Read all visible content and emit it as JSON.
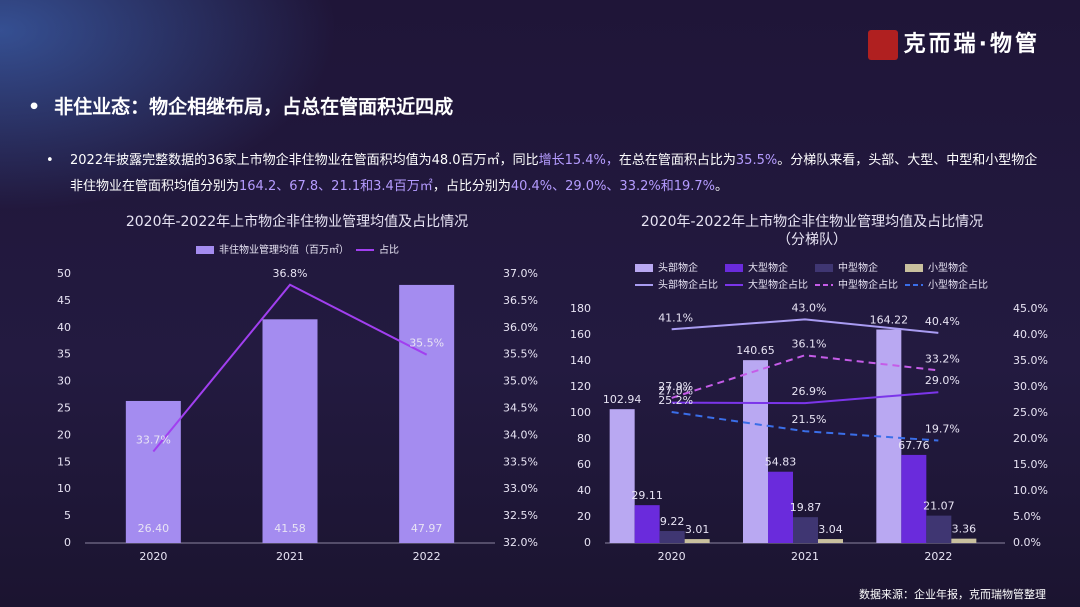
{
  "logo": "克而瑞·物管",
  "header": {
    "title": "非住业态：物企相继布局，占总在管面积近四成"
  },
  "paragraph": {
    "segments": [
      {
        "text": "2022年披露完整数据的36家上市物企非住物业在管面积均值为48.0百万㎡，同比",
        "highlight": false
      },
      {
        "text": "增长15.4%，",
        "highlight": true
      },
      {
        "text": "在总在管面积占比为",
        "highlight": false
      },
      {
        "text": "35.5%",
        "highlight": true
      },
      {
        "text": "。分梯队来看，头部、大型、中型和小型物企非住物业在管面积均值分别为",
        "highlight": false
      },
      {
        "text": "164.2、67.8、21.1和3.4百万㎡",
        "highlight": true
      },
      {
        "text": "，占比分别为",
        "highlight": false
      },
      {
        "text": "40.4%、29.0%、33.2%和19.7%",
        "highlight": true
      },
      {
        "text": "。",
        "highlight": false
      }
    ]
  },
  "source": "数据来源：企业年报，克而瑞物管整理",
  "chart_data": [
    {
      "type": "combo",
      "title": "2020年-2022年上市物企非住物业管理均值及占比情况",
      "categories": [
        "2020",
        "2021",
        "2022"
      ],
      "series": [
        {
          "name": "非住物业管理均值（百万㎡）",
          "type": "bar",
          "color": "#a48cf0",
          "values": [
            26.4,
            41.58,
            47.97
          ],
          "value_labels": [
            "26.40",
            "41.58",
            "47.97"
          ]
        },
        {
          "name": "占比",
          "type": "line",
          "axis": "y2",
          "color": "#a13ff0",
          "values": [
            33.7,
            36.8,
            35.5
          ],
          "value_labels": [
            "33.7%",
            "36.8%",
            "35.5%"
          ]
        }
      ],
      "ylim": [
        0,
        50
      ],
      "yticks": [
        0,
        5,
        10,
        15,
        20,
        25,
        30,
        35,
        40,
        45,
        50
      ],
      "y2lim": [
        32,
        37
      ],
      "y2ticks": [
        {
          "value": 32,
          "label": "32.0%"
        },
        {
          "value": 32.5,
          "label": "32.5%"
        },
        {
          "value": 33,
          "label": "33.0%"
        },
        {
          "value": 33.5,
          "label": "33.5%"
        },
        {
          "value": 34,
          "label": "34.0%"
        },
        {
          "value": 34.5,
          "label": "34.5%"
        },
        {
          "value": 35,
          "label": "35.0%"
        },
        {
          "value": 35.5,
          "label": "35.5%"
        },
        {
          "value": 36,
          "label": "36.0%"
        },
        {
          "value": 36.5,
          "label": "36.5%"
        },
        {
          "value": 37,
          "label": "37.0%"
        }
      ],
      "grid": false
    },
    {
      "type": "combo",
      "title": "2020年-2022年上市物企非住物业管理均值及占比情况",
      "subtitle": "（分梯队）",
      "categories": [
        "2020",
        "2021",
        "2022"
      ],
      "series": [
        {
          "name": "头部物企",
          "type": "bar",
          "color": "#b9a8f2",
          "values": [
            102.94,
            140.65,
            164.22
          ]
        },
        {
          "name": "大型物企",
          "type": "bar",
          "color": "#6a2bdc",
          "values": [
            29.11,
            54.83,
            67.76
          ]
        },
        {
          "name": "中型物企",
          "type": "bar",
          "color": "#3f3672",
          "values": [
            9.22,
            19.87,
            21.07
          ]
        },
        {
          "name": "小型物企",
          "type": "bar",
          "color": "#c9c09e",
          "values": [
            3.01,
            3.04,
            3.36
          ]
        },
        {
          "name": "头部物企占比",
          "type": "line",
          "axis": "y2",
          "color": "#a99cf2",
          "dash": false,
          "values": [
            41.1,
            43.0,
            40.4
          ],
          "value_labels": [
            "41.1%",
            "43.0%",
            "40.4%"
          ]
        },
        {
          "name": "大型物企占比",
          "type": "line",
          "axis": "y2",
          "color": "#7b35ea",
          "dash": false,
          "values": [
            27.0,
            26.9,
            29.0
          ],
          "value_labels": [
            "27.0%",
            "26.9%",
            "29.0%"
          ]
        },
        {
          "name": "中型物企占比",
          "type": "line",
          "axis": "y2",
          "color": "#c55ce8",
          "dash": true,
          "values": [
            27.9,
            36.1,
            33.2
          ],
          "value_labels": [
            "27.9%",
            "36.1%",
            "33.2%"
          ]
        },
        {
          "name": "小型物企占比",
          "type": "line",
          "axis": "y2",
          "color": "#3a6ee8",
          "dash": true,
          "values": [
            25.2,
            21.5,
            19.7
          ],
          "value_labels": [
            "25.2%",
            "21.5%",
            "19.7%"
          ]
        }
      ],
      "ylim": [
        0,
        180
      ],
      "yticks": [
        0,
        20,
        40,
        60,
        80,
        100,
        120,
        140,
        160,
        180
      ],
      "y2lim": [
        0,
        45
      ],
      "y2ticks": [
        {
          "value": 0,
          "label": "0.0%"
        },
        {
          "value": 5,
          "label": "5.0%"
        },
        {
          "value": 10,
          "label": "10.0%"
        },
        {
          "value": 15,
          "label": "15.0%"
        },
        {
          "value": 20,
          "label": "20.0%"
        },
        {
          "value": 25,
          "label": "25.0%"
        },
        {
          "value": 30,
          "label": "30.0%"
        },
        {
          "value": 35,
          "label": "35.0%"
        },
        {
          "value": 40,
          "label": "40.0%"
        },
        {
          "value": 45,
          "label": "45.0%"
        }
      ],
      "grid": false
    }
  ]
}
